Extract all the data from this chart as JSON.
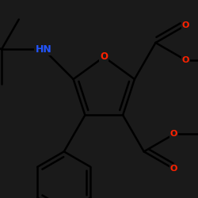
{
  "bg_color": "#1a1a1a",
  "bond_color": "black",
  "N_color": "#2255ff",
  "O_color": "#ff2200",
  "lw": 1.8,
  "figsize": [
    2.5,
    2.5
  ],
  "dpi": 100,
  "xlim": [
    -1.8,
    2.2
  ],
  "ylim": [
    -2.2,
    1.8
  ]
}
